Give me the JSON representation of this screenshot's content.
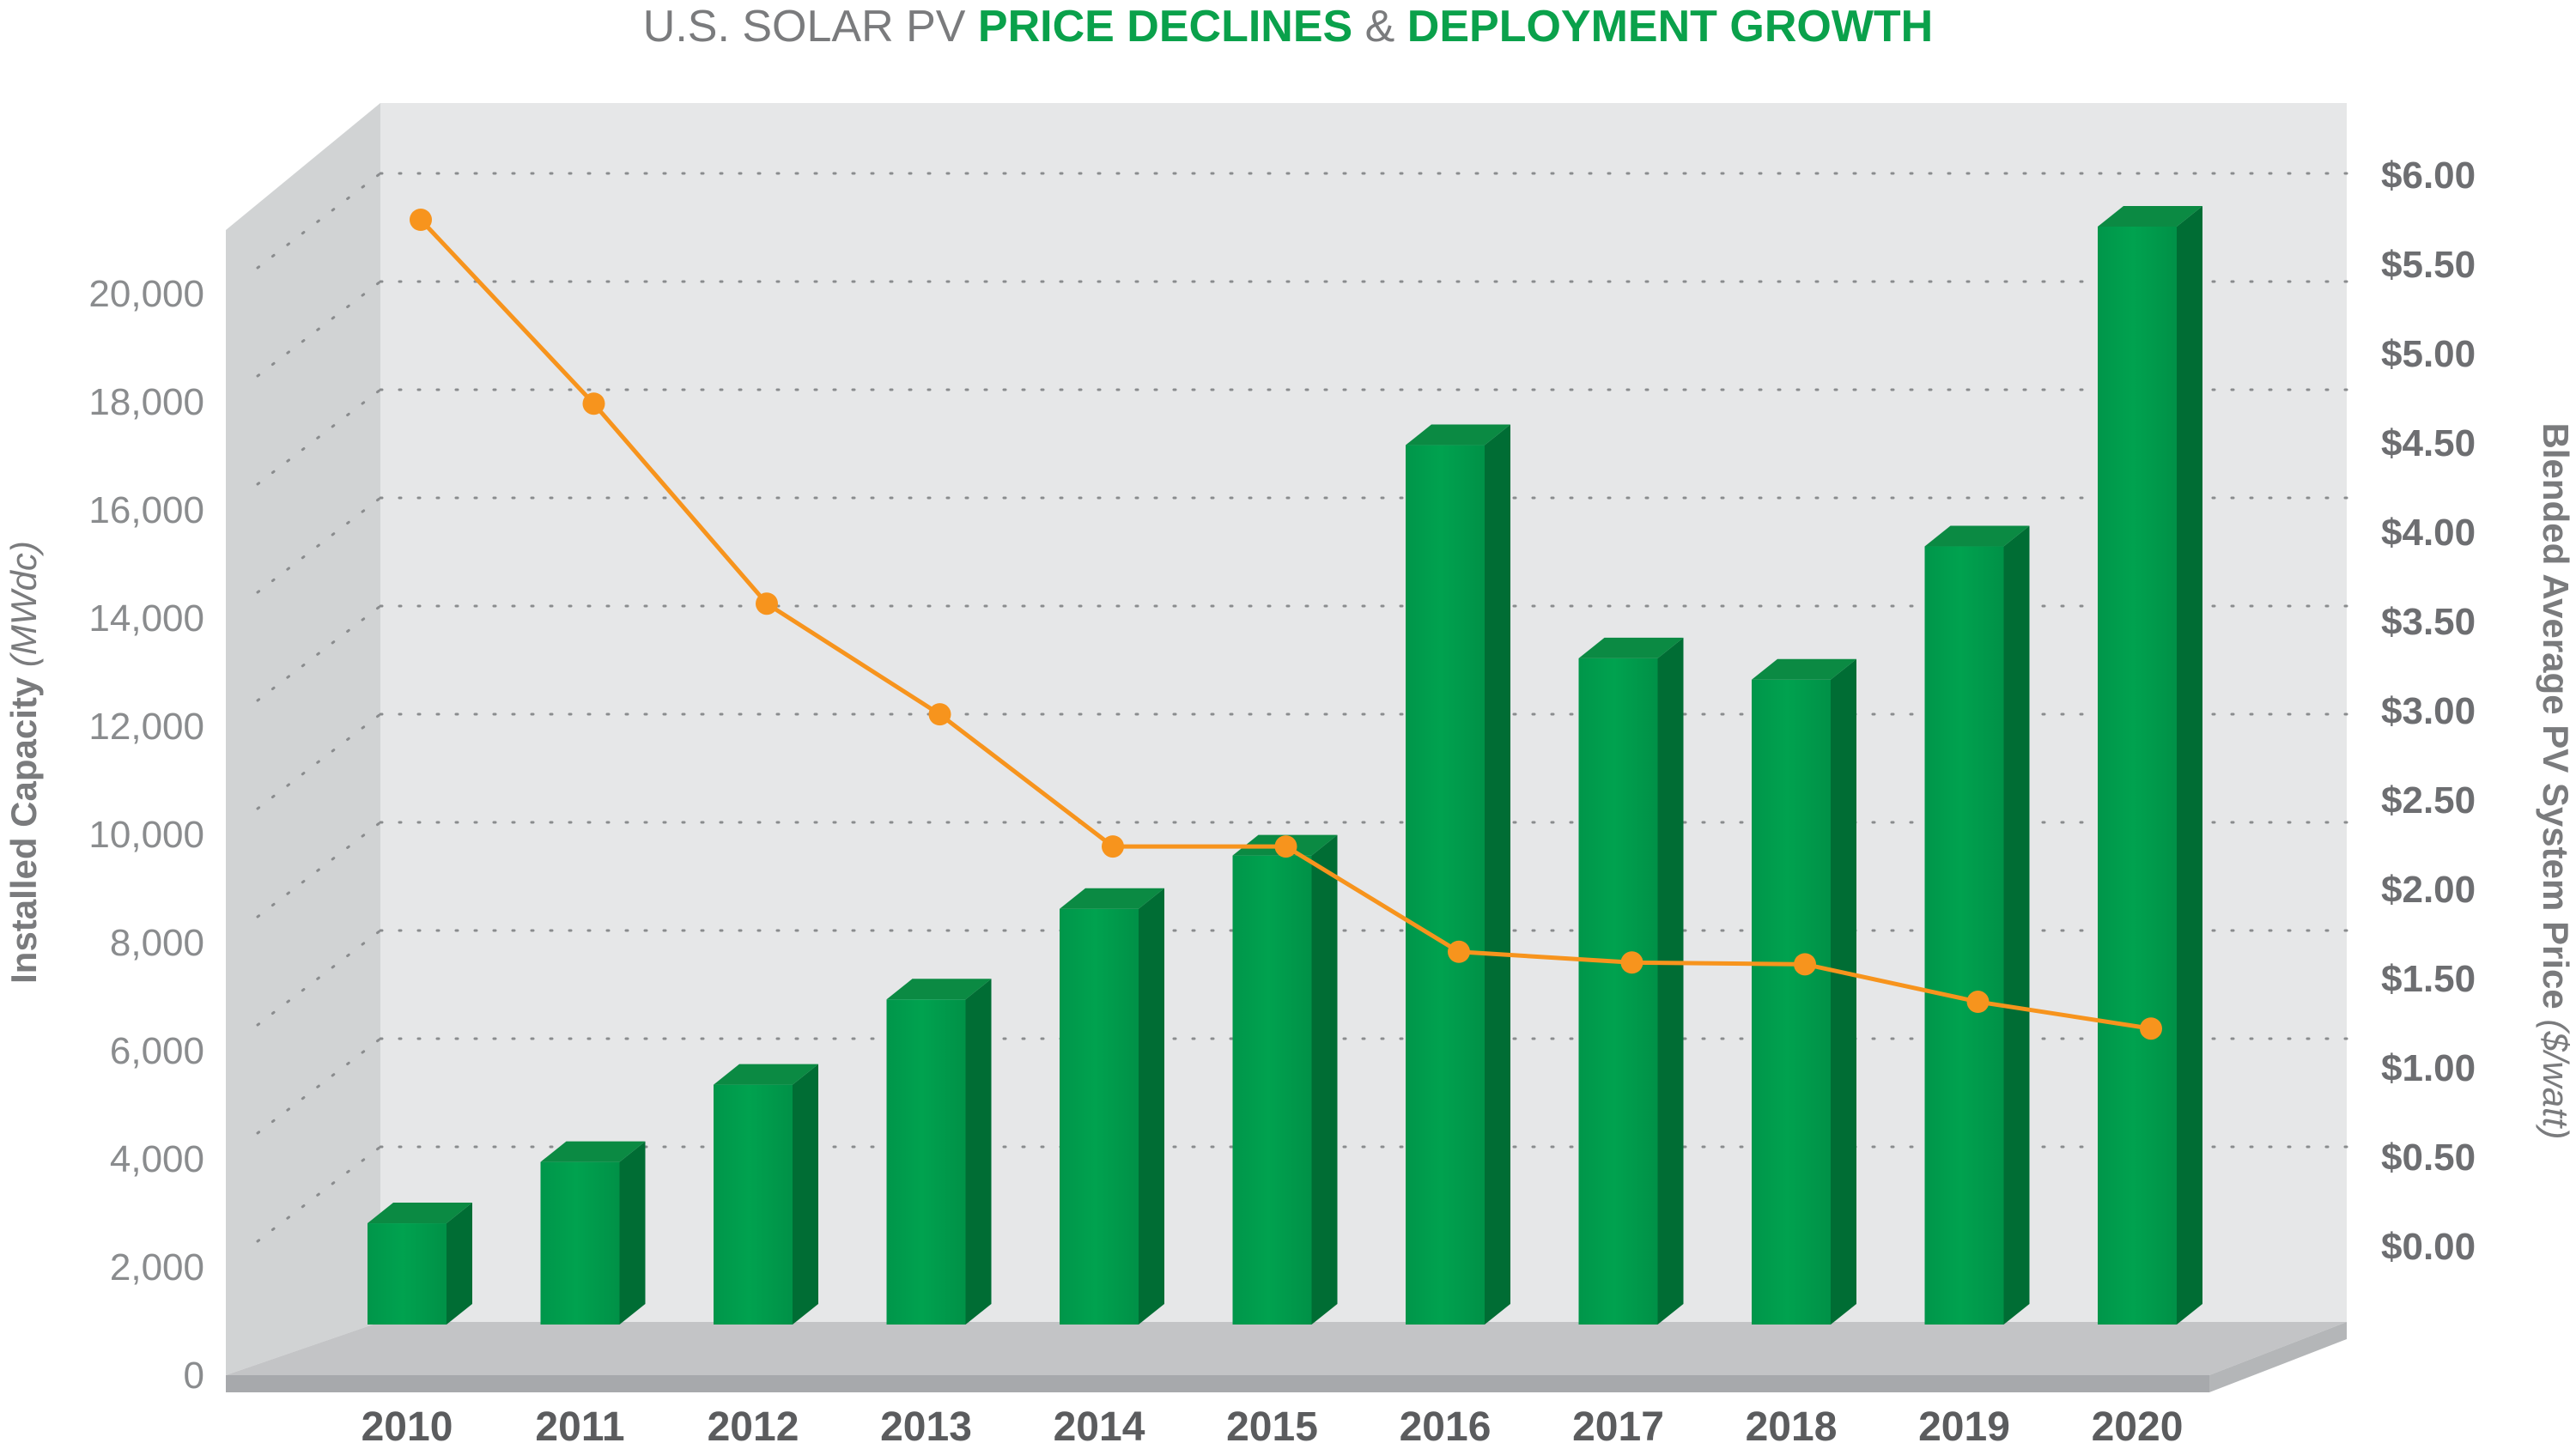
{
  "title": {
    "part1": "U.S. SOLAR PV ",
    "part2": "PRICE DECLINES",
    "part3": " & ",
    "part4": "DEPLOYMENT GROWTH"
  },
  "colors": {
    "green_title": "#0aa14b",
    "gray_title": "#7a7b7d",
    "bar_front": "#00a24f",
    "bar_side": "#006d34",
    "bar_top": "#17b15a",
    "line": "#f7941d",
    "wall_back": "#e6e7e8",
    "wall_side": "#d1d3d4",
    "floor": "#c3c4c6"
  },
  "chart_data": {
    "type": "bar",
    "categories": [
      "2010",
      "2011",
      "2012",
      "2013",
      "2014",
      "2015",
      "2016",
      "2017",
      "2018",
      "2019",
      "2020"
    ],
    "series": [
      {
        "type": "bar",
        "axis": "left",
        "values": [
          1900,
          3050,
          4500,
          6100,
          7800,
          8800,
          16500,
          12500,
          12100,
          14600,
          20600
        ]
      },
      {
        "type": "line",
        "axis": "right",
        "values": [
          5.75,
          4.72,
          3.6,
          2.98,
          2.24,
          2.24,
          1.65,
          1.59,
          1.58,
          1.37,
          1.22
        ]
      }
    ],
    "ylabel_left": {
      "main": "Installed Capacity",
      "unit": " (MWdc)"
    },
    "ylabel_right": {
      "main": "Blended Average PV System Price",
      "unit": " ($/watt)"
    },
    "ylim_left": [
      0,
      22000
    ],
    "ylim_right": [
      0,
      6.5
    ],
    "yticks_left": [
      "0",
      "2,000",
      "4,000",
      "6,000",
      "8,000",
      "10,000",
      "12,000",
      "14,000",
      "16,000",
      "18,000",
      "20,000"
    ],
    "yticks_right": [
      "$0.00",
      "$0.50",
      "$1.00",
      "$1.50",
      "$2.00",
      "$2.50",
      "$3.00",
      "$3.50",
      "$4.00",
      "$4.50",
      "$5.00",
      "$5.50",
      "$6.00"
    ],
    "grid": true
  }
}
